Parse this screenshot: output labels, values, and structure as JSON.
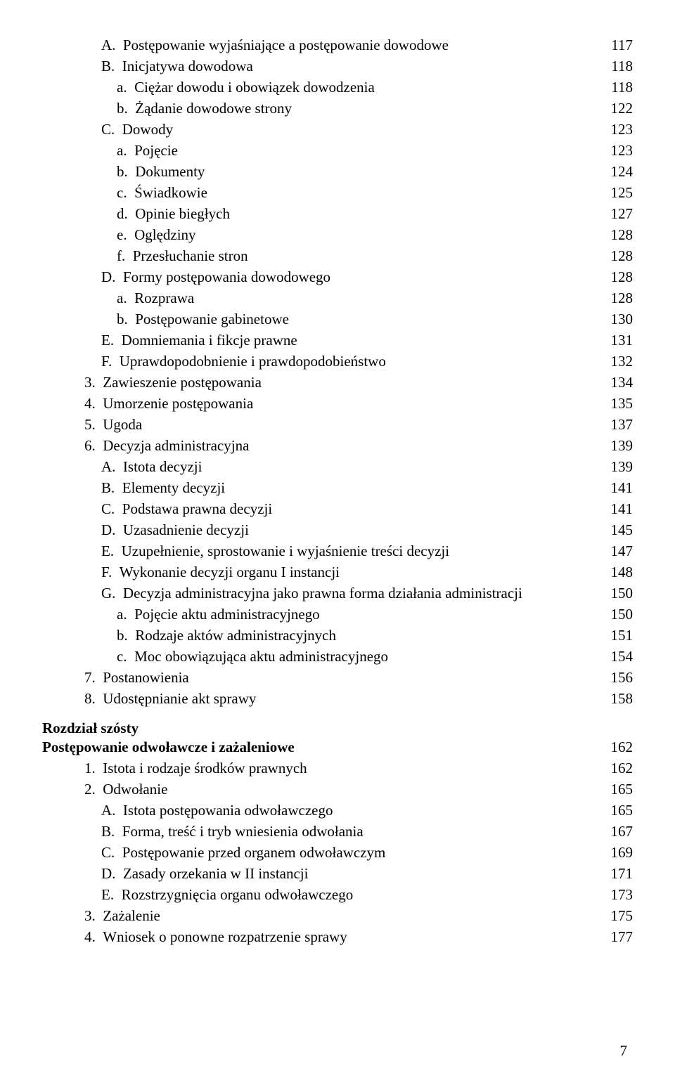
{
  "entries": [
    {
      "indent": 2,
      "label": "A.",
      "text": "Postępowanie wyjaśniające a postępowanie dowodowe",
      "page": "117"
    },
    {
      "indent": 2,
      "label": "B.",
      "text": "Inicjatywa dowodowa",
      "page": "118"
    },
    {
      "indent": 3,
      "label": "a.",
      "text": "Ciężar dowodu i obowiązek dowodzenia",
      "page": "118"
    },
    {
      "indent": 3,
      "label": "b.",
      "text": "Żądanie dowodowe strony",
      "page": "122"
    },
    {
      "indent": 2,
      "label": "C.",
      "text": "Dowody",
      "page": "123"
    },
    {
      "indent": 3,
      "label": "a.",
      "text": "Pojęcie",
      "page": "123"
    },
    {
      "indent": 3,
      "label": "b.",
      "text": "Dokumenty",
      "page": "124"
    },
    {
      "indent": 3,
      "label": "c.",
      "text": "Świadkowie",
      "page": "125"
    },
    {
      "indent": 3,
      "label": "d.",
      "text": "Opinie biegłych",
      "page": "127"
    },
    {
      "indent": 3,
      "label": "e.",
      "text": "Oględziny",
      "page": "128"
    },
    {
      "indent": 3,
      "label": "f.",
      "text": "Przesłuchanie stron",
      "page": "128"
    },
    {
      "indent": 2,
      "label": "D.",
      "text": "Formy postępowania dowodowego",
      "page": "128"
    },
    {
      "indent": 3,
      "label": "a.",
      "text": "Rozprawa",
      "page": "128"
    },
    {
      "indent": 3,
      "label": "b.",
      "text": "Postępowanie gabinetowe",
      "page": "130"
    },
    {
      "indent": 2,
      "label": "E.",
      "text": "Domniemania i fikcje prawne",
      "page": "131"
    },
    {
      "indent": 2,
      "label": "F.",
      "text": "Uprawdopodobnienie i prawdopodobieństwo",
      "page": "132"
    },
    {
      "indent": 1,
      "label": "3.",
      "text": "Zawieszenie postępowania",
      "page": "134"
    },
    {
      "indent": 1,
      "label": "4.",
      "text": "Umorzenie postępowania",
      "page": "135"
    },
    {
      "indent": 1,
      "label": "5.",
      "text": "Ugoda",
      "page": "137"
    },
    {
      "indent": 1,
      "label": "6.",
      "text": "Decyzja administracyjna",
      "page": "139"
    },
    {
      "indent": 2,
      "label": "A.",
      "text": "Istota decyzji",
      "page": "139"
    },
    {
      "indent": 2,
      "label": "B.",
      "text": "Elementy decyzji",
      "page": "141"
    },
    {
      "indent": 2,
      "label": "C.",
      "text": "Podstawa prawna decyzji",
      "page": "141"
    },
    {
      "indent": 2,
      "label": "D.",
      "text": "Uzasadnienie decyzji",
      "page": "145"
    },
    {
      "indent": 2,
      "label": "E.",
      "text": "Uzupełnienie, sprostowanie i wyjaśnienie treści decyzji",
      "page": "147"
    },
    {
      "indent": 2,
      "label": "F.",
      "text": "Wykonanie decyzji organu I instancji",
      "page": "148"
    },
    {
      "indent": 2,
      "label": "G.",
      "text": "Decyzja administracyjna jako prawna forma działania administracji",
      "page": "150"
    },
    {
      "indent": 3,
      "label": "a.",
      "text": "Pojęcie aktu administracyjnego",
      "page": "150"
    },
    {
      "indent": 3,
      "label": "b.",
      "text": "Rodzaje aktów administracyjnych",
      "page": "151"
    },
    {
      "indent": 3,
      "label": "c.",
      "text": "Moc obowiązująca aktu administracyjnego",
      "page": "154"
    },
    {
      "indent": 1,
      "label": "7.",
      "text": "Postanowienia",
      "page": "156"
    },
    {
      "indent": 1,
      "label": "8.",
      "text": "Udostępnianie akt sprawy",
      "page": "158"
    }
  ],
  "chapter6": {
    "label": "Rozdział szósty",
    "title": "Postępowanie odwoławcze i zażaleniowe",
    "title_page": "162",
    "entries": [
      {
        "indent": 1,
        "label": "1.",
        "text": "Istota i rodzaje środków prawnych",
        "page": "162"
      },
      {
        "indent": 1,
        "label": "2.",
        "text": "Odwołanie",
        "page": "165"
      },
      {
        "indent": 2,
        "label": "A.",
        "text": "Istota postępowania odwoławczego",
        "page": "165"
      },
      {
        "indent": 2,
        "label": "B.",
        "text": "Forma, treść i tryb wniesienia odwołania",
        "page": "167"
      },
      {
        "indent": 2,
        "label": "C.",
        "text": "Postępowanie przed organem odwoławczym",
        "page": "169"
      },
      {
        "indent": 2,
        "label": "D.",
        "text": "Zasady orzekania w II instancji",
        "page": "171"
      },
      {
        "indent": 2,
        "label": "E.",
        "text": "Rozstrzygnięcia organu odwoławczego",
        "page": "173"
      },
      {
        "indent": 1,
        "label": "3.",
        "text": "Zażalenie",
        "page": "175"
      },
      {
        "indent": 1,
        "label": "4.",
        "text": "Wniosek o ponowne rozpatrzenie sprawy",
        "page": "177"
      }
    ]
  },
  "pageNumber": "7"
}
